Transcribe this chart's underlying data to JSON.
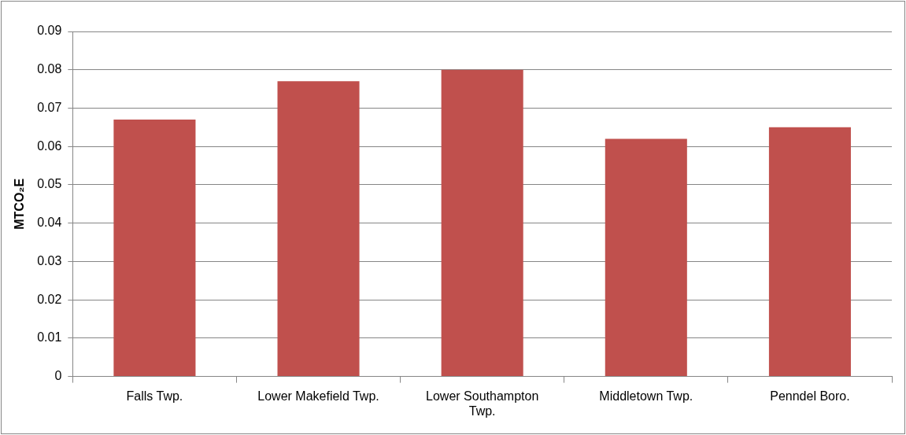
{
  "chart_data": {
    "type": "bar",
    "ylabel": "MTCO₂E",
    "categories": [
      "Falls Twp.",
      "Lower Makefield Twp.",
      "Lower Southampton Twp.",
      "Middletown Twp.",
      "Penndel Boro."
    ],
    "values": [
      0.067,
      0.077,
      0.08,
      0.062,
      0.065
    ],
    "color": "#c0504d",
    "ylim": [
      0,
      0.09
    ],
    "yticks": [
      0,
      0.01,
      0.02,
      0.03,
      0.04,
      0.05,
      0.06,
      0.07,
      0.08,
      0.09
    ],
    "grid": "y",
    "legend": false
  }
}
